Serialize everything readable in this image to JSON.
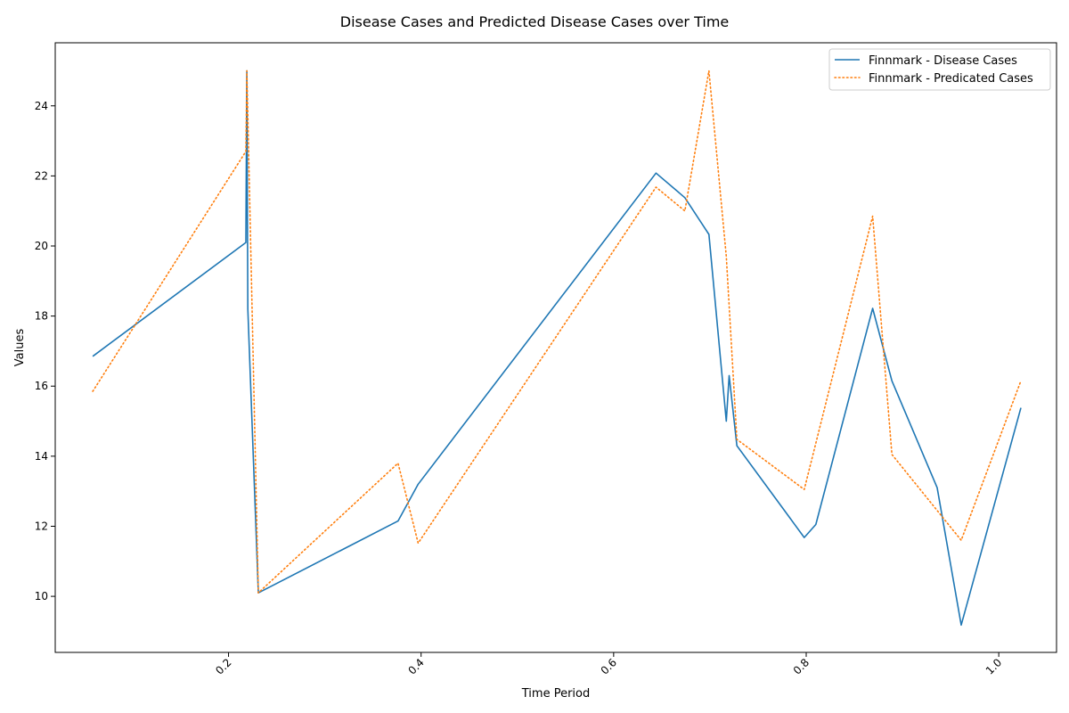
{
  "chart_data": {
    "type": "line",
    "title": "Disease Cases and Predicted Disease Cases over Time",
    "xlabel": "Time Period",
    "ylabel": "Values",
    "xlim": [
      0.02,
      1.06
    ],
    "ylim": [
      8.4,
      25.8
    ],
    "xticks": [
      0.2,
      0.4,
      0.6,
      0.8,
      1.0
    ],
    "xtick_labels": [
      "0.2",
      "0.4",
      "0.6",
      "0.8",
      "1.0"
    ],
    "yticks": [
      10,
      12,
      14,
      16,
      18,
      20,
      22,
      24
    ],
    "ytick_labels": [
      "10",
      "12",
      "14",
      "16",
      "18",
      "20",
      "22",
      "24"
    ],
    "grid": false,
    "legend_position": "top-right",
    "series": [
      {
        "name": "Finnmark - Disease Cases",
        "color": "#1f77b4",
        "style": "solid",
        "x": [
          0.059,
          0.218,
          0.219,
          0.22,
          0.231,
          0.376,
          0.397,
          0.644,
          0.674,
          0.699,
          0.717,
          0.72,
          0.728,
          0.798,
          0.81,
          0.869,
          0.889,
          0.936,
          0.961,
          1.023
        ],
        "y": [
          16.85,
          20.1,
          25.0,
          18.2,
          10.1,
          12.15,
          13.2,
          22.08,
          21.38,
          20.33,
          15.0,
          16.3,
          14.3,
          11.68,
          12.05,
          18.22,
          16.15,
          13.1,
          9.18,
          15.38
        ]
      },
      {
        "name": "Finnmark - Predicated Cases",
        "color": "#ff7f0e",
        "style": "dotted",
        "x": [
          0.059,
          0.218,
          0.219,
          0.231,
          0.376,
          0.397,
          0.644,
          0.674,
          0.699,
          0.717,
          0.728,
          0.798,
          0.869,
          0.889,
          0.961,
          1.023
        ],
        "y": [
          15.85,
          22.7,
          25.0,
          10.1,
          13.8,
          11.52,
          21.68,
          21.0,
          25.0,
          19.7,
          14.48,
          13.05,
          20.85,
          14.05,
          11.6,
          16.15
        ]
      }
    ]
  }
}
